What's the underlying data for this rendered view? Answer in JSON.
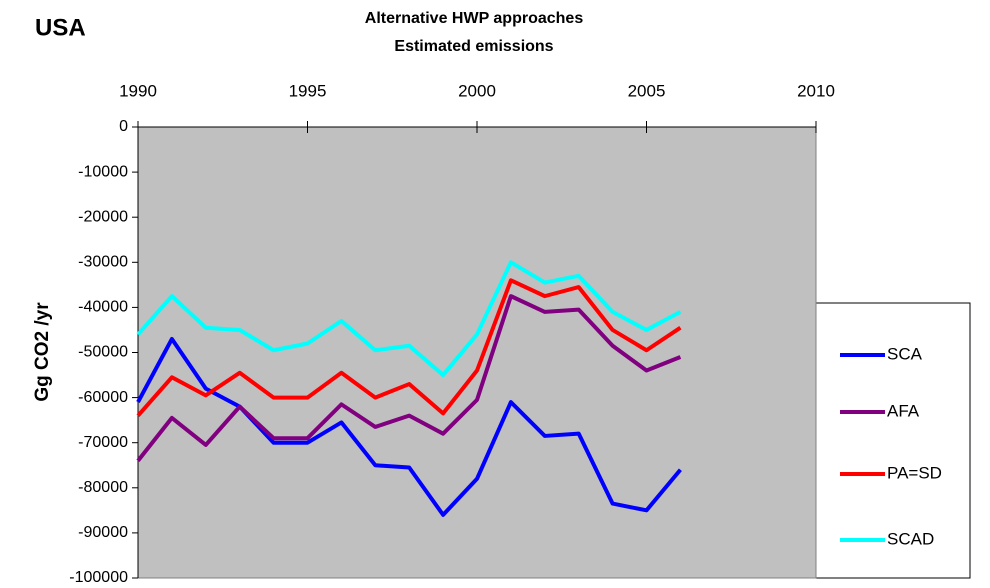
{
  "chart_data": {
    "type": "line",
    "annotation": "USA",
    "title": "Alternative HWP approaches",
    "subtitle": "Estimated emissions",
    "y_label": "Gg CO2 /yr",
    "x": [
      1990,
      1991,
      1992,
      1993,
      1994,
      1995,
      1996,
      1997,
      1998,
      1999,
      2000,
      2001,
      2002,
      2003,
      2004,
      2005,
      2006
    ],
    "xlim": [
      1990,
      2010
    ],
    "xticks": [
      1990,
      1995,
      2000,
      2005,
      2010
    ],
    "ylim": [
      -100000,
      0
    ],
    "yticks": [
      0,
      -10000,
      -20000,
      -30000,
      -40000,
      -50000,
      -60000,
      -70000,
      -80000,
      -90000,
      -100000
    ],
    "series": [
      {
        "name": "SCA",
        "color": "#0000ff",
        "values": [
          -61000,
          -47000,
          -58000,
          -62000,
          -70000,
          -70000,
          -65500,
          -75000,
          -75500,
          -86000,
          -78000,
          -61000,
          -68500,
          -68000,
          -83500,
          -85000,
          -76000
        ]
      },
      {
        "name": "AFA",
        "color": "#800080",
        "values": [
          -74000,
          -64500,
          -70500,
          -62000,
          -69000,
          -69000,
          -61500,
          -66500,
          -64000,
          -68000,
          -60500,
          -37500,
          -41000,
          -40500,
          -48500,
          -54000,
          -51000
        ]
      },
      {
        "name": "PA=SD",
        "color": "#ff0000",
        "values": [
          -64000,
          -55500,
          -59500,
          -54500,
          -60000,
          -60000,
          -54500,
          -60000,
          -57000,
          -63500,
          -54000,
          -34000,
          -37500,
          -35500,
          -45000,
          -49500,
          -44500
        ]
      },
      {
        "name": "SCAD",
        "color": "#00ffff",
        "values": [
          -46000,
          -37500,
          -44500,
          -45000,
          -49500,
          -48000,
          -43000,
          -49500,
          -48500,
          -55000,
          -46000,
          -30000,
          -34500,
          -33000,
          -41000,
          -45000,
          -41000
        ]
      }
    ],
    "plot_background": "#c0c0c0"
  }
}
